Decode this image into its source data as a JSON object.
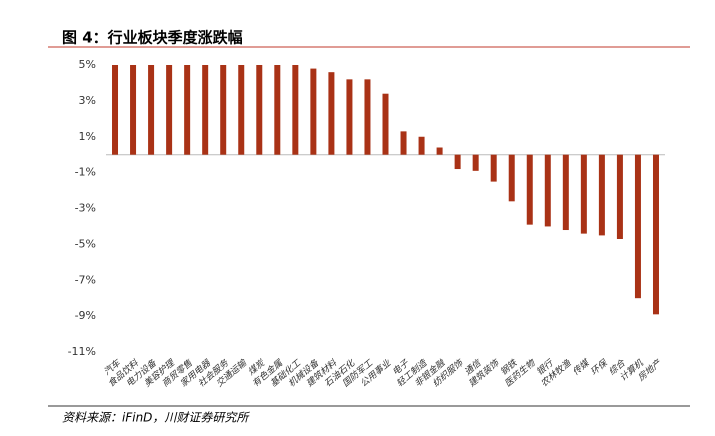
{
  "chart_data": {
    "type": "bar",
    "title": "图 4：行业板块季度涨跌幅",
    "source": "资料来源：iFinD，川财证券研究所",
    "categories": [
      "汽车",
      "食品饮料",
      "电力设备",
      "美容护理",
      "商贸零售",
      "家用电器",
      "社会服务",
      "交通运输",
      "煤炭",
      "有色金属",
      "基础化工",
      "机械设备",
      "建筑材料",
      "石油石化",
      "国防军工",
      "公用事业",
      "电子",
      "轻工制造",
      "非银金融",
      "纺织服饰",
      "通信",
      "建筑装饰",
      "钢铁",
      "医药生物",
      "银行",
      "农林牧渔",
      "传媒",
      "环保",
      "综合",
      "计算机",
      "房地产"
    ],
    "values": [
      5.0,
      5.0,
      5.0,
      5.0,
      5.0,
      5.0,
      5.0,
      5.0,
      5.0,
      5.0,
      5.0,
      4.8,
      4.6,
      4.2,
      4.2,
      3.4,
      1.3,
      1.0,
      0.4,
      -0.8,
      -0.9,
      -1.5,
      -2.6,
      -3.9,
      -4.0,
      -4.2,
      -4.4,
      -4.5,
      -4.7,
      -8.0,
      -8.9
    ],
    "color": "#a93216",
    "ylim": [
      -11,
      5
    ],
    "yticks": [
      {
        "value": 5,
        "label": "5%"
      },
      {
        "value": 3,
        "label": "3%"
      },
      {
        "value": 1,
        "label": "1%"
      },
      {
        "value": -1,
        "label": "-1%"
      },
      {
        "value": -3,
        "label": "-3%"
      },
      {
        "value": -5,
        "label": "-5%"
      },
      {
        "value": -7,
        "label": "-7%"
      },
      {
        "value": -9,
        "label": "-9%"
      },
      {
        "value": -11,
        "label": "-11%"
      }
    ],
    "grid": false
  }
}
